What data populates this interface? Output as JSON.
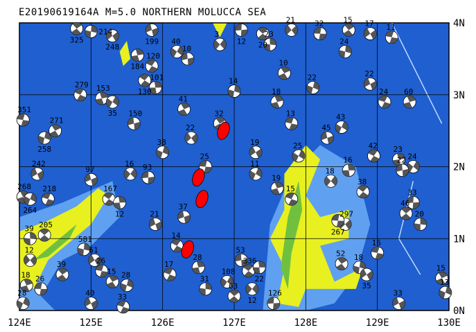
{
  "title": "E20190619164A M=5.0 NORTHERN MOLUCCA SEA",
  "map": {
    "lon_range": [
      124,
      130
    ],
    "lat_range": [
      0,
      4
    ],
    "lon_ticks": [
      "124E",
      "125E",
      "126E",
      "127E",
      "128E",
      "129E",
      "130E"
    ],
    "lat_ticks": [
      "0N",
      "1N",
      "2N",
      "3N",
      "4N"
    ],
    "colors": {
      "deep_sea": "#1f5fd0",
      "shallow_sea": "#5fa0f0",
      "lowland": "#e8f020",
      "upland": "#70c040",
      "highland": "#e07070",
      "mechanism_compression": "#555555",
      "mechanism_dilatation": "#ffffff",
      "target_event": "#ff0000",
      "grid": "#000000"
    }
  },
  "events": [
    [
      124.8,
      3.92,
      "325"
    ],
    [
      125.0,
      3.88,
      "214"
    ],
    [
      125.3,
      3.82,
      "248"
    ],
    [
      124.05,
      2.65,
      "351"
    ],
    [
      124.5,
      2.5,
      "271"
    ],
    [
      124.35,
      2.4,
      "258"
    ],
    [
      124.25,
      1.9,
      "242"
    ],
    [
      124.4,
      1.55,
      "218"
    ],
    [
      124.05,
      1.58,
      "268"
    ],
    [
      124.15,
      1.55,
      "264"
    ],
    [
      125.0,
      1.82,
      "97"
    ],
    [
      124.85,
      3.0,
      "279"
    ],
    [
      125.15,
      2.95,
      "153"
    ],
    [
      125.3,
      2.9,
      "35"
    ],
    [
      125.6,
      2.6,
      "150"
    ],
    [
      125.25,
      1.55,
      "167"
    ],
    [
      125.4,
      1.5,
      "12"
    ],
    [
      125.55,
      1.9,
      "16"
    ],
    [
      125.8,
      1.85,
      "93"
    ],
    [
      124.35,
      1.05,
      "205"
    ],
    [
      124.15,
      1.0,
      "39"
    ],
    [
      124.15,
      0.7,
      "12"
    ],
    [
      124.3,
      0.3,
      "26"
    ],
    [
      124.6,
      0.5,
      "39"
    ],
    [
      124.9,
      0.85,
      "581"
    ],
    [
      125.05,
      0.7,
      "61"
    ],
    [
      125.15,
      0.55,
      "26"
    ],
    [
      125.3,
      0.4,
      "15"
    ],
    [
      125.5,
      0.35,
      "28"
    ],
    [
      125.0,
      0.1,
      "40"
    ],
    [
      125.45,
      0.05,
      "33"
    ],
    [
      124.1,
      0.35,
      "18"
    ],
    [
      124.05,
      0.1,
      "28"
    ],
    [
      125.85,
      3.9,
      "199"
    ],
    [
      125.85,
      3.4,
      "120"
    ],
    [
      125.65,
      3.55,
      "184"
    ],
    [
      126.2,
      3.6,
      "40"
    ],
    [
      126.35,
      3.5,
      "10"
    ],
    [
      125.75,
      3.2,
      "130"
    ],
    [
      125.9,
      3.1,
      "101"
    ],
    [
      126.8,
      3.7,
      "3"
    ],
    [
      127.1,
      3.9,
      "12"
    ],
    [
      127.4,
      3.85,
      "20"
    ],
    [
      127.5,
      3.7,
      "23"
    ],
    [
      127.8,
      3.9,
      "21"
    ],
    [
      128.2,
      3.85,
      "32"
    ],
    [
      128.6,
      3.9,
      "15"
    ],
    [
      128.55,
      3.6,
      "24"
    ],
    [
      128.9,
      3.85,
      "17"
    ],
    [
      129.2,
      3.8,
      "11"
    ],
    [
      127.7,
      3.3,
      "10"
    ],
    [
      128.1,
      3.1,
      "22"
    ],
    [
      128.9,
      3.15,
      "22"
    ],
    [
      129.1,
      2.9,
      "24"
    ],
    [
      129.45,
      2.9,
      "60"
    ],
    [
      128.5,
      2.55,
      "43"
    ],
    [
      128.3,
      2.4,
      "45"
    ],
    [
      128.95,
      2.15,
      "42"
    ],
    [
      129.3,
      2.1,
      "23"
    ],
    [
      129.5,
      2.0,
      "24"
    ],
    [
      129.35,
      1.95,
      "22"
    ],
    [
      128.8,
      1.65,
      "38"
    ],
    [
      128.6,
      1.95,
      "16"
    ],
    [
      128.35,
      1.8,
      "18"
    ],
    [
      129.5,
      1.5,
      "33"
    ],
    [
      129.4,
      1.35,
      "46"
    ],
    [
      129.6,
      1.2,
      "20"
    ],
    [
      128.55,
      1.2,
      "297"
    ],
    [
      128.45,
      1.25,
      "267"
    ],
    [
      128.5,
      0.65,
      "52"
    ],
    [
      128.75,
      0.6,
      "18"
    ],
    [
      128.85,
      0.5,
      "35"
    ],
    [
      129.0,
      0.8,
      "16"
    ],
    [
      129.9,
      0.45,
      "15"
    ],
    [
      129.95,
      0.25,
      "13"
    ],
    [
      129.3,
      0.1,
      "33"
    ],
    [
      127.8,
      1.55,
      "15"
    ],
    [
      127.6,
      1.7,
      "19"
    ],
    [
      127.3,
      1.9,
      "11"
    ],
    [
      126.3,
      1.3,
      "37"
    ],
    [
      126.2,
      0.9,
      "14"
    ],
    [
      126.5,
      0.6,
      "28"
    ],
    [
      126.9,
      0.4,
      "108"
    ],
    [
      127.1,
      0.7,
      "53"
    ],
    [
      127.2,
      0.55,
      "336"
    ],
    [
      127.35,
      0.6,
      "22"
    ],
    [
      127.25,
      0.3,
      "12"
    ],
    [
      127.55,
      0.1,
      "126"
    ],
    [
      127.0,
      0.2,
      "63"
    ],
    [
      126.6,
      0.3,
      "31"
    ],
    [
      126.4,
      2.4,
      "22"
    ],
    [
      126.6,
      2.0,
      "25"
    ],
    [
      126.8,
      2.6,
      "32"
    ],
    [
      127.0,
      3.05,
      "14"
    ],
    [
      127.3,
      2.2,
      "19"
    ],
    [
      127.8,
      2.6,
      "13"
    ],
    [
      126.3,
      2.8,
      "41"
    ],
    [
      126.0,
      2.2,
      "38"
    ],
    [
      125.9,
      1.2,
      "21"
    ],
    [
      126.1,
      0.5,
      "17"
    ],
    [
      127.6,
      2.9,
      "18"
    ],
    [
      127.9,
      2.15,
      "25"
    ]
  ],
  "target_events": [
    [
      126.85,
      2.5
    ],
    [
      126.5,
      1.85
    ],
    [
      126.55,
      1.55
    ],
    [
      126.35,
      0.85
    ]
  ]
}
